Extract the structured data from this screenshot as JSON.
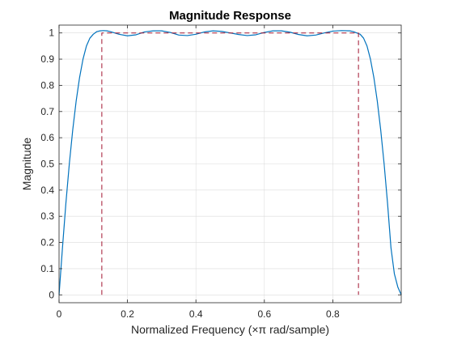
{
  "chart_data": {
    "type": "line",
    "title": "Magnitude Response",
    "xlabel": "Normalized Frequency (×π rad/sample)",
    "ylabel": "Magnitude",
    "xlim": [
      0,
      1
    ],
    "ylim": [
      -0.03,
      1.03
    ],
    "grid": true,
    "xticks": [
      0,
      0.2,
      0.4,
      0.6,
      0.8
    ],
    "xtick_labels": [
      "0",
      "0.2",
      "0.4",
      "0.6",
      "0.8"
    ],
    "yticks": [
      0,
      0.1,
      0.2,
      0.3,
      0.4,
      0.5,
      0.6,
      0.7,
      0.8,
      0.9,
      1
    ],
    "ytick_labels": [
      "0",
      "0.1",
      "0.2",
      "0.3",
      "0.4",
      "0.5",
      "0.6",
      "0.7",
      "0.8",
      "0.9",
      "1"
    ],
    "series": [
      {
        "style": "solid",
        "color": "#0072BD",
        "x": [
          0.0,
          0.01,
          0.02,
          0.03,
          0.04,
          0.05,
          0.06,
          0.07,
          0.08,
          0.09,
          0.1,
          0.11,
          0.12,
          0.13,
          0.14,
          0.15,
          0.175,
          0.2,
          0.225,
          0.25,
          0.275,
          0.3,
          0.325,
          0.35,
          0.375,
          0.4,
          0.425,
          0.45,
          0.475,
          0.5,
          0.525,
          0.55,
          0.575,
          0.6,
          0.625,
          0.65,
          0.675,
          0.7,
          0.725,
          0.75,
          0.775,
          0.8,
          0.825,
          0.85,
          0.86,
          0.87,
          0.88,
          0.89,
          0.9,
          0.91,
          0.92,
          0.93,
          0.94,
          0.95,
          0.96,
          0.97,
          0.98,
          0.99,
          1.0
        ],
        "y": [
          0.0,
          0.18,
          0.35,
          0.5,
          0.63,
          0.74,
          0.83,
          0.9,
          0.95,
          0.98,
          0.995,
          1.005,
          1.008,
          1.009,
          1.008,
          1.005,
          0.995,
          0.989,
          0.993,
          1.004,
          1.008,
          1.008,
          1.002,
          0.992,
          0.99,
          0.995,
          1.004,
          1.008,
          1.006,
          1.0,
          0.994,
          0.99,
          0.993,
          1.002,
          1.008,
          1.008,
          1.003,
          0.994,
          0.989,
          0.992,
          1.0,
          1.007,
          1.009,
          1.008,
          1.005,
          1.0,
          0.995,
          0.98,
          0.95,
          0.9,
          0.83,
          0.74,
          0.63,
          0.5,
          0.35,
          0.18,
          0.08,
          0.03,
          0.0
        ]
      },
      {
        "style": "dashed",
        "color": "#A2142F",
        "x": [
          0.125,
          0.125,
          0.875,
          0.875
        ],
        "y": [
          0.0,
          1.0,
          1.0,
          0.0
        ]
      }
    ]
  }
}
